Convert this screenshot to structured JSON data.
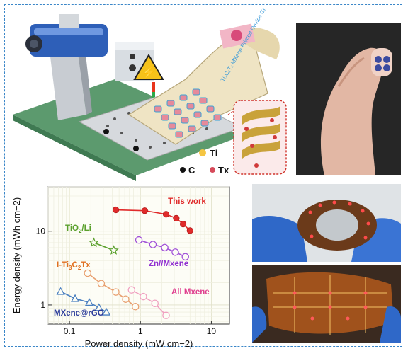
{
  "schematic": {
    "legend": {
      "ti": "Ti",
      "c": "C",
      "tx": "Tx"
    },
    "film_text": "Ti₃C₂Tₓ MXene Printed Device Group"
  },
  "chart_data": {
    "type": "scatter",
    "xlabel": "Power density (mW cm−2)",
    "ylabel": "Energy density (mWh cm−2)",
    "xscale": "log",
    "yscale": "log",
    "xlim": [
      0.05,
      18
    ],
    "ylim": [
      0.55,
      40
    ],
    "x_ticks": [
      "0.1",
      "1",
      "10"
    ],
    "y_ticks": [
      "1",
      "10"
    ],
    "grid": true,
    "series": [
      {
        "name": "This work",
        "color": "#e02b2b",
        "marker": "circle-filled",
        "points": [
          [
            0.45,
            19.5
          ],
          [
            1.15,
            19.0
          ],
          [
            2.3,
            17.0
          ],
          [
            3.2,
            15.0
          ],
          [
            4.0,
            12.5
          ],
          [
            5.0,
            10.2
          ]
        ]
      },
      {
        "name": "TiO2/Li",
        "color": "#5aa02c",
        "marker": "star",
        "points": [
          [
            0.22,
            7.0
          ],
          [
            0.42,
            5.5
          ]
        ]
      },
      {
        "name": "Zn//Mxene",
        "color": "#a050d8",
        "marker": "circle-open",
        "points": [
          [
            0.95,
            7.6
          ],
          [
            1.5,
            6.6
          ],
          [
            2.2,
            6.0
          ],
          [
            3.1,
            5.2
          ],
          [
            4.3,
            4.5
          ]
        ]
      },
      {
        "name": "I-Ti3C2Tx",
        "color": "#e8a070",
        "marker": "circle-open",
        "points": [
          [
            0.18,
            2.7
          ],
          [
            0.28,
            1.95
          ],
          [
            0.45,
            1.5
          ],
          [
            0.62,
            1.2
          ],
          [
            0.85,
            0.95
          ]
        ]
      },
      {
        "name": "All Mxene",
        "color": "#f0a0c0",
        "marker": "circle-open",
        "points": [
          [
            0.75,
            1.6
          ],
          [
            1.1,
            1.3
          ],
          [
            1.6,
            1.05
          ],
          [
            2.3,
            0.72
          ]
        ]
      },
      {
        "name": "MXene@rGO",
        "color": "#4a7fc0",
        "marker": "triangle-open",
        "points": [
          [
            0.075,
            1.52
          ],
          [
            0.12,
            1.22
          ],
          [
            0.19,
            1.08
          ],
          [
            0.26,
            0.92
          ],
          [
            0.33,
            0.8
          ]
        ]
      }
    ],
    "labels": [
      {
        "text": "This work",
        "color": "#e02b2b"
      },
      {
        "text": "TiO2/Li",
        "color": "#5aa02c"
      },
      {
        "text": "I-Ti3C2Tx",
        "color": "#e07020"
      },
      {
        "text": "Zn//Mxene",
        "color": "#9030d0"
      },
      {
        "text": "All Mxene",
        "color": "#e04090"
      },
      {
        "text": "MXene@rGO",
        "color": "#2a3a9a"
      }
    ]
  }
}
